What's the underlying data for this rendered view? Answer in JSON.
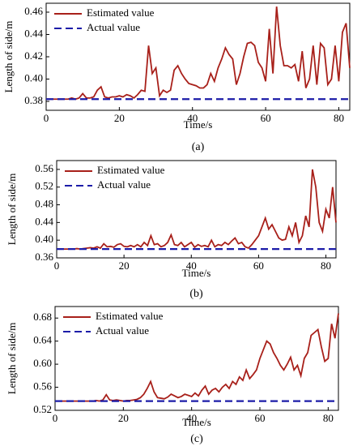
{
  "chart_data": [
    {
      "type": "line",
      "caption": "(a)",
      "xlabel": "Time/s",
      "ylabel": "Length of side/m",
      "xlim": [
        0,
        83
      ],
      "xticks": [
        0,
        20,
        40,
        60,
        80
      ],
      "ylim": [
        0.372,
        0.468
      ],
      "yticks": [
        0.38,
        {
          "value": 0.4,
          "label": "0.40"
        },
        0.42,
        0.44,
        0.46
      ],
      "x": [
        0,
        1,
        2,
        3,
        4,
        5,
        6,
        7,
        8,
        9,
        10,
        11,
        12,
        13,
        14,
        15,
        16,
        17,
        18,
        19,
        20,
        21,
        22,
        23,
        24,
        25,
        26,
        27,
        28,
        29,
        30,
        31,
        32,
        33,
        34,
        35,
        36,
        37,
        38,
        39,
        40,
        41,
        42,
        43,
        44,
        45,
        46,
        47,
        48,
        49,
        50,
        51,
        52,
        53,
        54,
        55,
        56,
        57,
        58,
        59,
        60,
        61,
        62,
        63,
        64,
        65,
        66,
        67,
        68,
        69,
        70,
        71,
        72,
        73,
        74,
        75,
        76,
        77,
        78,
        79,
        80,
        81,
        82,
        83
      ],
      "series": [
        {
          "name": "Estimated value",
          "color": "#a8201a",
          "values": [
            0.382,
            0.382,
            0.382,
            0.382,
            0.382,
            0.382,
            0.382,
            0.383,
            0.382,
            0.383,
            0.387,
            0.383,
            0.383,
            0.384,
            0.39,
            0.393,
            0.384,
            0.383,
            0.384,
            0.384,
            0.385,
            0.384,
            0.386,
            0.385,
            0.383,
            0.386,
            0.39,
            0.389,
            0.43,
            0.405,
            0.41,
            0.385,
            0.39,
            0.388,
            0.39,
            0.408,
            0.412,
            0.405,
            0.4,
            0.396,
            0.395,
            0.394,
            0.392,
            0.392,
            0.395,
            0.405,
            0.398,
            0.41,
            0.418,
            0.428,
            0.422,
            0.418,
            0.395,
            0.405,
            0.42,
            0.432,
            0.433,
            0.43,
            0.415,
            0.41,
            0.398,
            0.445,
            0.405,
            0.465,
            0.43,
            0.412,
            0.412,
            0.41,
            0.413,
            0.398,
            0.425,
            0.392,
            0.4,
            0.43,
            0.395,
            0.432,
            0.428,
            0.395,
            0.4,
            0.43,
            0.398,
            0.442,
            0.45,
            0.41
          ]
        },
        {
          "name": "Actual value",
          "color": "#1c1ca8",
          "dashed": true,
          "x": [
            0,
            83
          ],
          "values": [
            0.382,
            0.382
          ]
        }
      ]
    },
    {
      "type": "line",
      "caption": "(b)",
      "xlabel": "Time/s",
      "ylabel": "Length of side/m",
      "xlim": [
        0,
        83
      ],
      "xticks": [
        0,
        20,
        40,
        60,
        80
      ],
      "ylim": [
        0.36,
        0.58
      ],
      "yticks": [
        0.36,
        {
          "value": 0.4,
          "label": "0.40"
        },
        0.44,
        0.48,
        0.52,
        0.56
      ],
      "x": [
        0,
        1,
        2,
        3,
        4,
        5,
        6,
        7,
        8,
        9,
        10,
        11,
        12,
        13,
        14,
        15,
        16,
        17,
        18,
        19,
        20,
        21,
        22,
        23,
        24,
        25,
        26,
        27,
        28,
        29,
        30,
        31,
        32,
        33,
        34,
        35,
        36,
        37,
        38,
        39,
        40,
        41,
        42,
        43,
        44,
        45,
        46,
        47,
        48,
        49,
        50,
        51,
        52,
        53,
        54,
        55,
        56,
        57,
        58,
        59,
        60,
        61,
        62,
        63,
        64,
        65,
        66,
        67,
        68,
        69,
        70,
        71,
        72,
        73,
        74,
        75,
        76,
        77,
        78,
        79,
        80,
        81,
        82,
        83
      ],
      "series": [
        {
          "name": "Estimated value",
          "color": "#a8201a",
          "values": [
            0.38,
            0.38,
            0.38,
            0.38,
            0.38,
            0.38,
            0.381,
            0.38,
            0.381,
            0.382,
            0.383,
            0.382,
            0.385,
            0.382,
            0.392,
            0.385,
            0.386,
            0.384,
            0.39,
            0.392,
            0.386,
            0.385,
            0.388,
            0.385,
            0.39,
            0.385,
            0.395,
            0.388,
            0.41,
            0.39,
            0.392,
            0.385,
            0.388,
            0.395,
            0.412,
            0.39,
            0.388,
            0.395,
            0.385,
            0.39,
            0.395,
            0.384,
            0.39,
            0.386,
            0.388,
            0.385,
            0.4,
            0.385,
            0.39,
            0.388,
            0.395,
            0.39,
            0.398,
            0.405,
            0.392,
            0.395,
            0.385,
            0.382,
            0.39,
            0.4,
            0.41,
            0.43,
            0.45,
            0.425,
            0.435,
            0.42,
            0.405,
            0.4,
            0.402,
            0.43,
            0.41,
            0.44,
            0.395,
            0.41,
            0.455,
            0.43,
            0.56,
            0.52,
            0.44,
            0.42,
            0.47,
            0.45,
            0.52,
            0.44
          ]
        },
        {
          "name": "Actual value",
          "color": "#1c1ca8",
          "dashed": true,
          "x": [
            0,
            83
          ],
          "values": [
            0.38,
            0.38
          ]
        }
      ]
    },
    {
      "type": "line",
      "caption": "(c)",
      "xlabel": "Time/s",
      "ylabel": "Length of side/m",
      "xlim": [
        0,
        83
      ],
      "xticks": [
        0,
        20,
        40,
        60,
        80
      ],
      "ylim": [
        0.52,
        0.7
      ],
      "yticks": [
        0.52,
        0.56,
        {
          "value": 0.6,
          "label": "0.60"
        },
        0.64,
        0.68
      ],
      "x": [
        0,
        1,
        2,
        3,
        4,
        5,
        6,
        7,
        8,
        9,
        10,
        11,
        12,
        13,
        14,
        15,
        16,
        17,
        18,
        19,
        20,
        21,
        22,
        23,
        24,
        25,
        26,
        27,
        28,
        29,
        30,
        31,
        32,
        33,
        34,
        35,
        36,
        37,
        38,
        39,
        40,
        41,
        42,
        43,
        44,
        45,
        46,
        47,
        48,
        49,
        50,
        51,
        52,
        53,
        54,
        55,
        56,
        57,
        58,
        59,
        60,
        61,
        62,
        63,
        64,
        65,
        66,
        67,
        68,
        69,
        70,
        71,
        72,
        73,
        74,
        75,
        76,
        77,
        78,
        79,
        80,
        81,
        82,
        83
      ],
      "series": [
        {
          "name": "Estimated value",
          "color": "#a8201a",
          "values": [
            0.536,
            0.536,
            0.536,
            0.536,
            0.536,
            0.536,
            0.536,
            0.536,
            0.536,
            0.536,
            0.536,
            0.536,
            0.537,
            0.536,
            0.538,
            0.547,
            0.538,
            0.537,
            0.538,
            0.537,
            0.536,
            0.537,
            0.537,
            0.538,
            0.539,
            0.542,
            0.548,
            0.558,
            0.57,
            0.552,
            0.542,
            0.541,
            0.54,
            0.543,
            0.548,
            0.545,
            0.542,
            0.544,
            0.548,
            0.546,
            0.544,
            0.55,
            0.545,
            0.555,
            0.562,
            0.548,
            0.555,
            0.558,
            0.552,
            0.56,
            0.565,
            0.558,
            0.57,
            0.565,
            0.578,
            0.572,
            0.59,
            0.575,
            0.582,
            0.59,
            0.61,
            0.625,
            0.64,
            0.635,
            0.62,
            0.61,
            0.598,
            0.59,
            0.6,
            0.612,
            0.59,
            0.598,
            0.58,
            0.61,
            0.62,
            0.65,
            0.655,
            0.66,
            0.63,
            0.605,
            0.61,
            0.67,
            0.645,
            0.688
          ]
        },
        {
          "name": "Actual value",
          "color": "#1c1ca8",
          "dashed": true,
          "x": [
            0,
            83
          ],
          "values": [
            0.536,
            0.536
          ]
        }
      ]
    }
  ]
}
